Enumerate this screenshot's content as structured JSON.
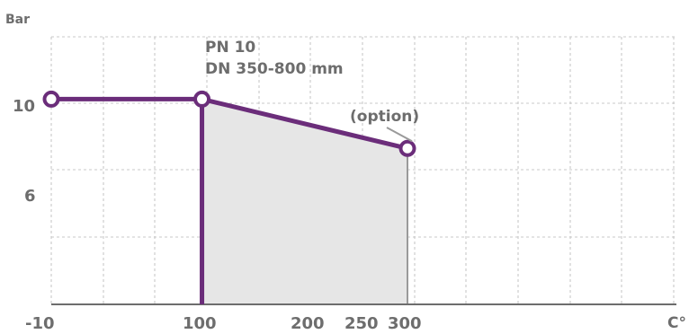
{
  "chart_data": {
    "type": "line",
    "title": "",
    "xlabel": "C°",
    "ylabel": "Bar",
    "x_ticks": [
      "-10",
      "100",
      "200",
      "250",
      "300"
    ],
    "y_ticks": [
      "10",
      "6"
    ],
    "xlim": [
      -10,
      445
    ],
    "ylim": [
      0,
      14
    ],
    "grid": true,
    "annotations": {
      "spec_line1": "PN 10",
      "spec_line2": "DN 350-800 mm",
      "option_label": "(option)"
    },
    "series": [
      {
        "color": "#6b2d7a",
        "points": [
          {
            "x": -10,
            "y": 10
          },
          {
            "x": 100,
            "y": 10
          },
          {
            "x": 250,
            "y": 7.6
          }
        ]
      }
    ],
    "shaded_region": {
      "color": "#e6e6e6",
      "points": [
        {
          "x": 100,
          "y": 10
        },
        {
          "x": 250,
          "y": 7.6
        },
        {
          "x": 250,
          "y": 0
        },
        {
          "x": 100,
          "y": 0
        }
      ]
    },
    "vertical_marker": {
      "x": 100,
      "color": "#6b2d7a"
    }
  }
}
